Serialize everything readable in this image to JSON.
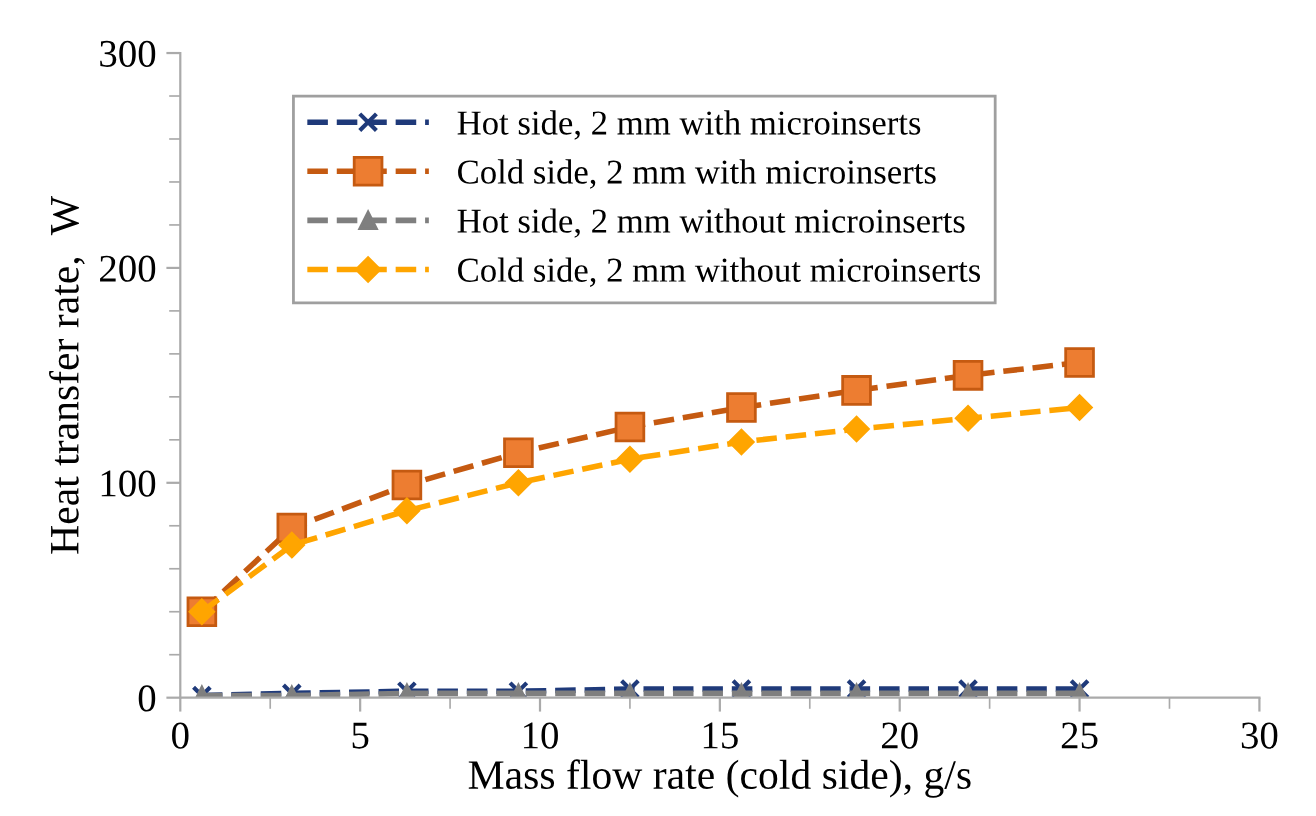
{
  "chart_data": {
    "type": "line",
    "xlabel": "Mass flow rate (cold side), g/s",
    "ylabel": "Heat transfer rate,  W",
    "x": [
      0.6,
      3.1,
      6.3,
      9.4,
      12.5,
      15.6,
      18.8,
      21.9,
      25
    ],
    "series": [
      {
        "name": "Hot side, 2 mm with microinserts",
        "color": "#1f3a7a",
        "marker": "cross",
        "values": [
          1,
          2,
          3,
          3,
          4,
          4,
          4,
          4,
          4
        ]
      },
      {
        "name": "Cold side, 2 mm with microinserts",
        "color": "#c55a11",
        "marker": "square",
        "values": [
          40,
          79,
          99,
          114,
          126,
          135,
          143,
          150,
          156
        ]
      },
      {
        "name": "Hot side, 2 mm without microinserts",
        "color": "#7f7f7f",
        "marker": "triangle",
        "values": [
          1,
          1,
          2,
          2,
          2,
          2,
          2,
          2,
          2
        ]
      },
      {
        "name": "Cold side, 2 mm without microinserts",
        "color": "#ffa500",
        "marker": "diamond",
        "values": [
          40,
          71,
          87,
          100,
          111,
          119,
          125,
          130,
          135
        ]
      }
    ],
    "xlim": [
      0,
      30
    ],
    "xticks": [
      0,
      5,
      10,
      15,
      20,
      25,
      30
    ],
    "ylim": [
      0,
      300
    ],
    "yticks": [
      0,
      100,
      200,
      300
    ],
    "line_style": "dashed",
    "grid": false,
    "legend": "top"
  }
}
